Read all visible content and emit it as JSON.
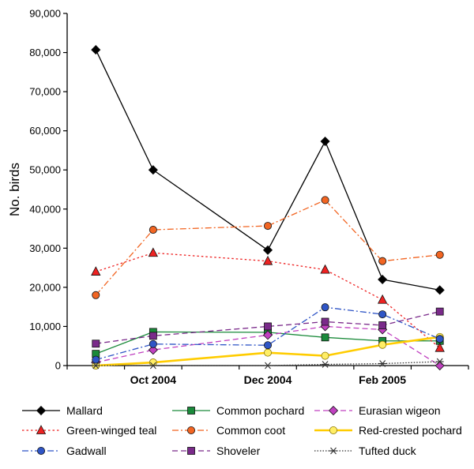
{
  "chart_data": {
    "type": "line",
    "title": "",
    "xlabel": "",
    "ylabel": "No. birds",
    "ylim": [
      0,
      90000
    ],
    "y_ticks": [
      "0",
      "10,000",
      "20,000",
      "30,000",
      "40,000",
      "50,000",
      "60,000",
      "70,000",
      "80,000",
      "90,000"
    ],
    "x_tick_labels": [
      "Oct 2004",
      "Dec 2004",
      "Feb 2005"
    ],
    "x_tick_positions": [
      1.5,
      3.5,
      5.5
    ],
    "x_range": [
      0,
      7
    ],
    "x": [
      0.5,
      1.5,
      3.5,
      4.5,
      5.5,
      6.5
    ],
    "grid": false,
    "legend_position": "bottom",
    "series": [
      {
        "name": "Mallard",
        "color": "#000000",
        "dash": "solid",
        "marker": "diamond",
        "marker_fill": "#000000",
        "x": [
          0.5,
          1.5,
          3.5,
          4.5,
          5.5,
          6.5
        ],
        "values": [
          80700,
          50000,
          29500,
          57300,
          22000,
          19300
        ]
      },
      {
        "name": "Common pochard",
        "color": "#1a8a3a",
        "dash": "solid",
        "marker": "square",
        "marker_fill": "#1a8a3a",
        "x": [
          0.5,
          1.5,
          3.5,
          4.5,
          5.5,
          6.5
        ],
        "values": [
          3000,
          8600,
          8500,
          7200,
          6300,
          6300
        ]
      },
      {
        "name": "Eurasian wigeon",
        "color": "#c040c0",
        "dash": "dash",
        "marker": "diamond",
        "marker_fill": "#c040c0",
        "x": [
          0.5,
          1.5,
          3.5,
          4.5,
          5.5,
          6.5
        ],
        "values": [
          800,
          4000,
          7800,
          10000,
          9200,
          0
        ]
      },
      {
        "name": "Green-winged teal",
        "color": "#ee2222",
        "dash": "dot",
        "marker": "triangle",
        "marker_fill": "#ee2222",
        "x": [
          0.5,
          1.5,
          3.5,
          4.5,
          5.5,
          6.5
        ],
        "values": [
          24000,
          28800,
          26700,
          24500,
          16800,
          4500
        ]
      },
      {
        "name": "Common coot",
        "color": "#f26522",
        "dash": "dashdot",
        "marker": "circle",
        "marker_fill": "#f26522",
        "x": [
          0.5,
          1.5,
          3.5,
          4.5,
          5.5,
          6.5
        ],
        "values": [
          18000,
          34700,
          35700,
          42300,
          26700,
          28300
        ]
      },
      {
        "name": "Red-crested pochard",
        "color": "#ffcc00",
        "dash": "solid",
        "marker": "circle",
        "marker_fill": "#ffee66",
        "width": 2.6,
        "x": [
          0.5,
          1.5,
          3.5,
          4.5,
          5.5,
          6.5
        ],
        "values": [
          0,
          800,
          3300,
          2500,
          5300,
          7300
        ]
      },
      {
        "name": "Gadwall",
        "color": "#2f55c6",
        "dash": "dashdot",
        "marker": "circle",
        "marker_fill": "#2f55c6",
        "x": [
          0.5,
          1.5,
          3.5,
          4.5,
          5.5,
          6.5
        ],
        "values": [
          1500,
          5500,
          5200,
          14900,
          13100,
          6800
        ]
      },
      {
        "name": "Shoveler",
        "color": "#7a2a8a",
        "dash": "dash",
        "marker": "square",
        "marker_fill": "#7a2a8a",
        "x": [
          0.5,
          1.5,
          3.5,
          4.5,
          5.5,
          6.5
        ],
        "values": [
          5600,
          7600,
          10000,
          11200,
          10300,
          13800
        ]
      },
      {
        "name": "Tufted duck",
        "color": "#333333",
        "dash": "finedot",
        "marker": "asterisk",
        "marker_fill": "#333333",
        "x": [
          0.5,
          1.5,
          3.5,
          4.5,
          5.5,
          6.5
        ],
        "values": [
          0,
          0,
          0,
          300,
          500,
          1000
        ]
      }
    ]
  }
}
